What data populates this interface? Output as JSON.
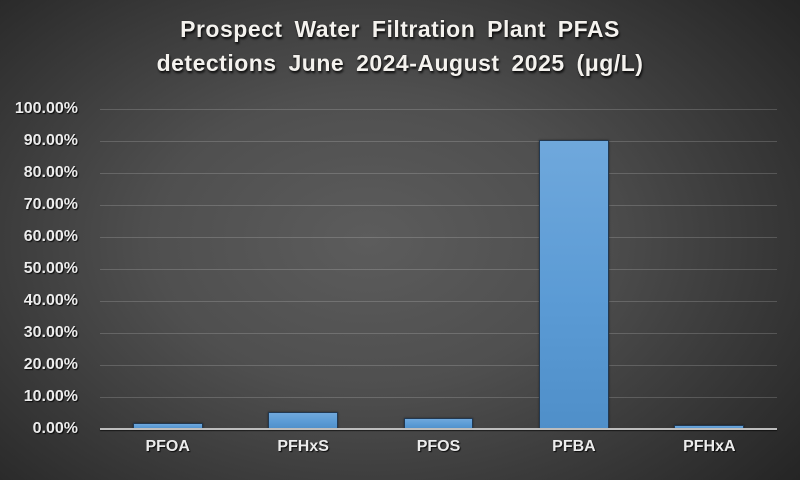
{
  "title": {
    "line1": "Prospect Water Filtration Plant PFAS",
    "line2": "detections June 2024-August 2025 (μg/L)"
  },
  "chart_data": {
    "type": "bar",
    "title": "Prospect Water Filtration Plant PFAS detections June 2024-August 2025 (μg/L)",
    "categories": [
      "PFOA",
      "PFHxS",
      "PFOS",
      "PFBA",
      "PFHxA"
    ],
    "values": [
      1.5,
      5,
      3,
      90,
      0.8
    ],
    "xlabel": "",
    "ylabel": "",
    "ylim": [
      0,
      100
    ],
    "ytick_labels": [
      "0.00%",
      "10.00%",
      "20.00%",
      "30.00%",
      "40.00%",
      "50.00%",
      "60.00%",
      "70.00%",
      "80.00%",
      "90.00%",
      "100.00%"
    ],
    "grid": true,
    "legend": false,
    "colors": {
      "bar_fill": "#5b9bd5",
      "bar_border": "#223850",
      "axis_line": "#bdbdbd",
      "gridline": "rgba(255,255,255,0.17)",
      "text": "#ececec",
      "title_text": "#f4f2ee",
      "background_center": "#5c5c5c",
      "background_edge": "#1f1f1f"
    }
  }
}
